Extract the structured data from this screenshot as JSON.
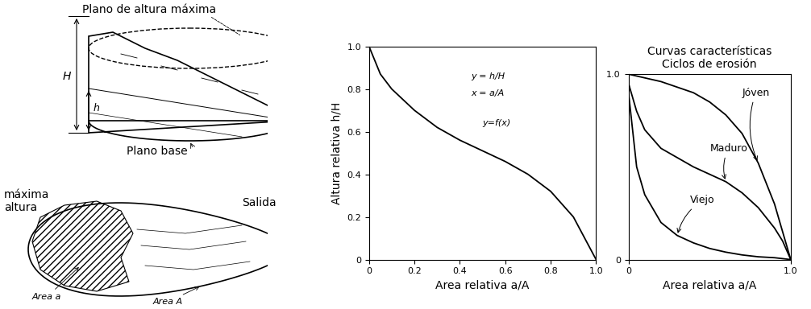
{
  "diagram": {
    "labels": {
      "top_plane": "Plano de altura máxima",
      "H": "H",
      "h": "h",
      "base_plane": "Plano base",
      "max_height": "máxima\naltura",
      "outlet": "Salida",
      "area_a": "Area a",
      "area_A": "Area A"
    }
  },
  "chart_data": [
    {
      "type": "line",
      "xlabel": "Area relativa a/A",
      "ylabel": "Altura relativa h/H",
      "annotations": [
        "y = h/H",
        "x = a/A",
        "y=f(x)"
      ],
      "xlim": [
        0,
        1.0
      ],
      "ylim": [
        0,
        1.0
      ],
      "xticks": [
        0,
        0.2,
        0.4,
        0.6,
        0.8,
        1.0
      ],
      "yticks": [
        0,
        0.2,
        0.4,
        0.6,
        0.8,
        1.0
      ],
      "x": [
        0,
        0.05,
        0.1,
        0.2,
        0.3,
        0.4,
        0.5,
        0.6,
        0.7,
        0.8,
        0.9,
        0.95,
        1.0
      ],
      "values": [
        1.0,
        0.87,
        0.8,
        0.7,
        0.62,
        0.56,
        0.51,
        0.46,
        0.4,
        0.32,
        0.2,
        0.1,
        0
      ],
      "color": "#000000"
    },
    {
      "type": "line",
      "title": "Curvas características\nCiclos de erosión",
      "xlabel": "Area relativa a/A",
      "xlim": [
        0,
        1.0
      ],
      "ylim": [
        0,
        1.0
      ],
      "xticks": [
        0,
        1.0
      ],
      "yticks": [
        0,
        1.0
      ],
      "x": [
        0,
        0.05,
        0.1,
        0.2,
        0.3,
        0.4,
        0.5,
        0.6,
        0.7,
        0.8,
        0.9,
        0.95,
        1.0
      ],
      "series": [
        {
          "name": "Jóven",
          "color": "#000000",
          "values": [
            1.0,
            0.99,
            0.98,
            0.96,
            0.93,
            0.9,
            0.85,
            0.78,
            0.68,
            0.52,
            0.3,
            0.15,
            0
          ]
        },
        {
          "name": "Maduro",
          "color": "#000000",
          "values": [
            0.95,
            0.8,
            0.7,
            0.6,
            0.55,
            0.5,
            0.46,
            0.42,
            0.36,
            0.28,
            0.17,
            0.1,
            0
          ]
        },
        {
          "name": "Viejo",
          "color": "#000000",
          "values": [
            0.9,
            0.5,
            0.35,
            0.2,
            0.13,
            0.09,
            0.06,
            0.04,
            0.025,
            0.015,
            0.01,
            0.005,
            0
          ]
        }
      ]
    }
  ]
}
